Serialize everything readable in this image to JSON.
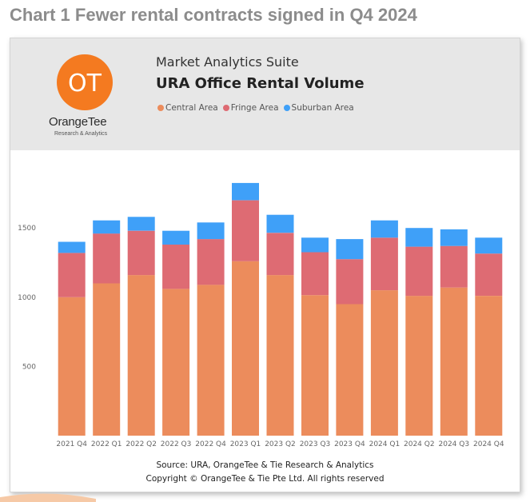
{
  "page": {
    "heading": "Chart 1 Fewer rental contracts signed in Q4 2024"
  },
  "logo": {
    "monogram": "OT",
    "name": "OrangeTee",
    "tagline": "Research & Analytics",
    "color": "#f47a20"
  },
  "header": {
    "suite": "Market Analytics Suite",
    "background": "#e7e7e7"
  },
  "footer": {
    "source": "Source: URA, OrangeTee & Tie Research & Analytics",
    "copyright": "Copyright © OrangeTee & Tie Pte Ltd. All rights reserved"
  },
  "chart_data": {
    "type": "bar",
    "stacked": true,
    "title": "URA Office Rental Volume",
    "xlabel": "",
    "ylabel": "",
    "categories": [
      "2021 Q4",
      "2022 Q1",
      "2022 Q2",
      "2022 Q3",
      "2022 Q4",
      "2023 Q1",
      "2023 Q2",
      "2023 Q3",
      "2023 Q4",
      "2024 Q1",
      "2024 Q2",
      "2024 Q3",
      "2024 Q4"
    ],
    "series": [
      {
        "name": "Central Area",
        "color": "#ec8c5c",
        "values": [
          1000,
          1100,
          1160,
          1060,
          1090,
          1260,
          1160,
          1015,
          950,
          1050,
          1010,
          1070,
          1010
        ]
      },
      {
        "name": "Fringe Area",
        "color": "#de6b73",
        "values": [
          320,
          360,
          320,
          320,
          330,
          440,
          305,
          310,
          325,
          380,
          355,
          300,
          305
        ]
      },
      {
        "name": "Suburban Area",
        "color": "#3fa0f8",
        "values": [
          80,
          95,
          100,
          100,
          120,
          125,
          130,
          105,
          145,
          125,
          135,
          120,
          115
        ]
      }
    ],
    "ylim": [
      0,
      1900
    ],
    "yticks": [
      500,
      1000,
      1500
    ],
    "grid": false,
    "legend_position": "top-left"
  }
}
